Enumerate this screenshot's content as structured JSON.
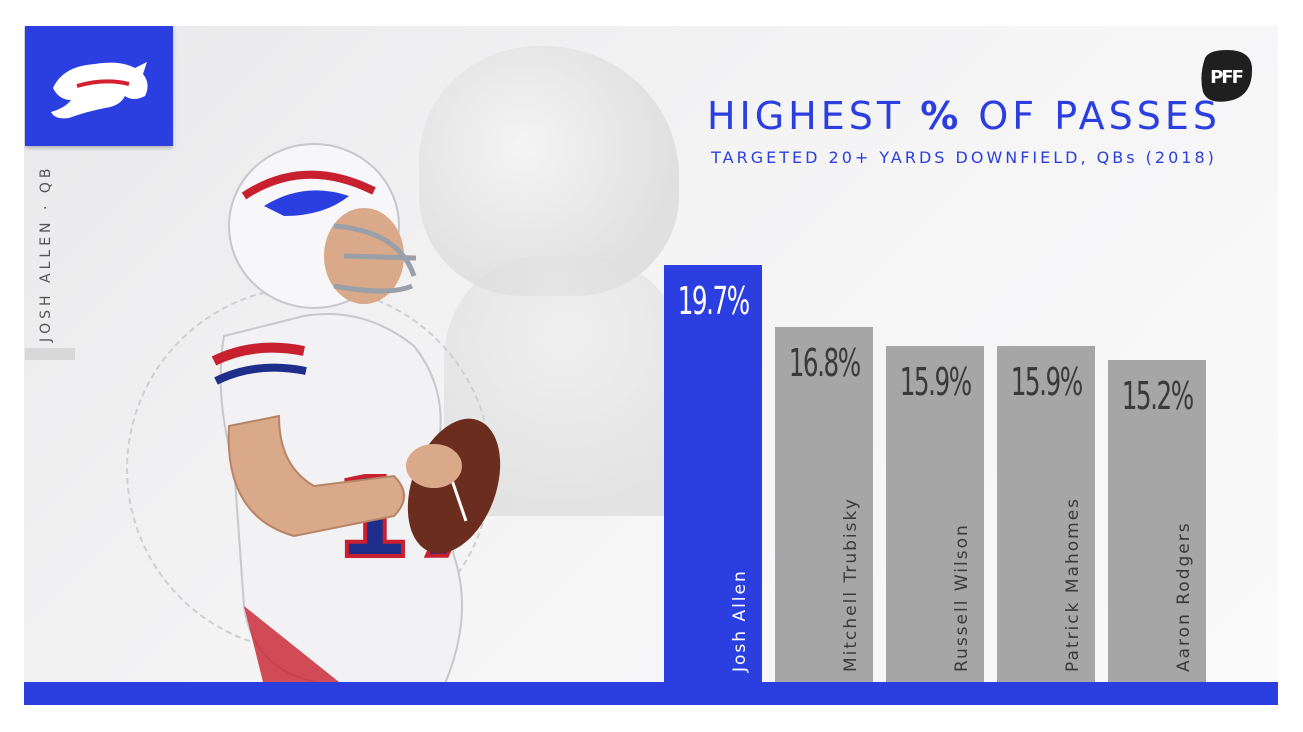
{
  "header": {
    "title_pre": "HIGHEST ",
    "title_pct": "%",
    "title_post": " OF PASSES",
    "subtitle": "TARGETED 20+ YARDS DOWNFIELD, QBs (2018)"
  },
  "player": {
    "side_label": "JOSH ALLEN · QB"
  },
  "brand": {
    "team_logo": "buffalo-icon",
    "publisher_logo": "PFF",
    "accent": "#2b3ee0",
    "bar_default": "#a6a6a6",
    "highlight": "#2b3ee0"
  },
  "chart_data": {
    "type": "bar",
    "title": "HIGHEST % OF PASSES",
    "subtitle": "TARGETED 20+ YARDS DOWNFIELD, QBs (2018)",
    "categories": [
      "Josh Allen",
      "Mitchell Trubisky",
      "Russell Wilson",
      "Patrick Mahomes",
      "Aaron Rodgers"
    ],
    "values": [
      19.7,
      16.8,
      15.9,
      15.9,
      15.2
    ],
    "value_labels": [
      "19.7%",
      "16.8%",
      "15.9%",
      "15.9%",
      "15.2%"
    ],
    "highlight_index": 0,
    "ylim": [
      0,
      20.8
    ],
    "grid": false,
    "legend": "none"
  }
}
